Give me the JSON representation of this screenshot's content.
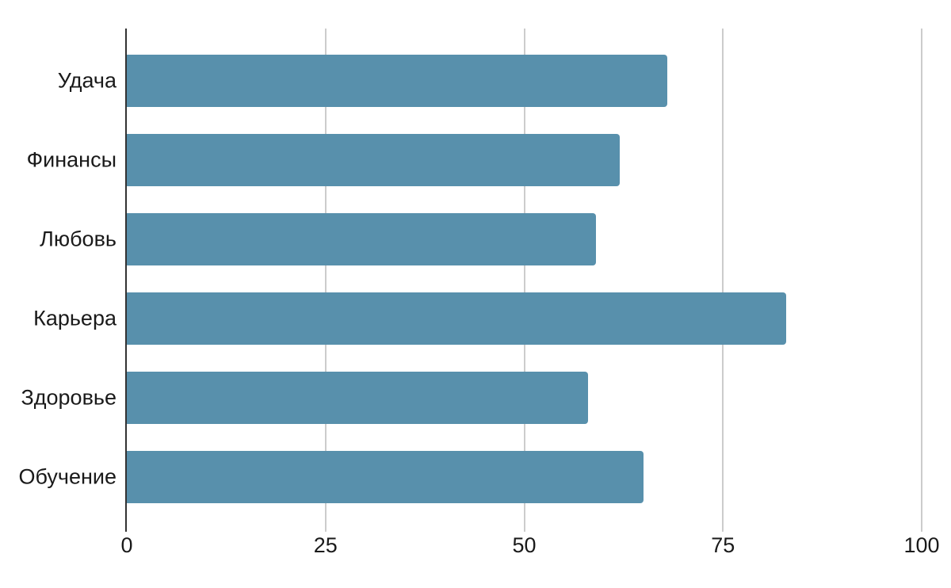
{
  "chart_data": {
    "type": "bar",
    "orientation": "horizontal",
    "title": "",
    "xlabel": "",
    "ylabel": "",
    "categories": [
      "Удача",
      "Финансы",
      "Любовь",
      "Карьера",
      "Здоровье",
      "Обучение"
    ],
    "values": [
      68,
      62,
      59,
      83,
      58,
      65
    ],
    "xlim": [
      0,
      100
    ],
    "xticks": [
      0,
      25,
      50,
      75,
      100
    ],
    "grid": true,
    "legend": false,
    "colors": {
      "bar": "#5890ac",
      "axis": "#333333",
      "gridline": "#cccccc",
      "text": "#1a1a1a",
      "background": "#ffffff"
    }
  }
}
